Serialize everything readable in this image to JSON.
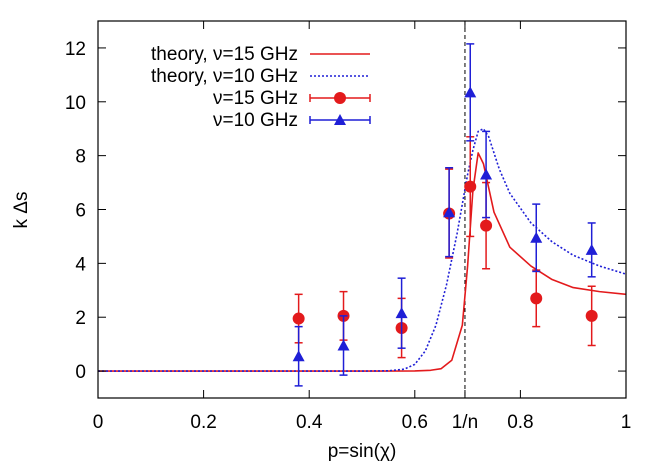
{
  "chart_data": {
    "type": "scatter",
    "xlabel": "p=sin(χ)",
    "ylabel": "k Δs",
    "xlim": [
      0,
      1
    ],
    "ylim": [
      -1,
      13
    ],
    "x_ticks": [
      {
        "value": 0,
        "label": "0"
      },
      {
        "value": 0.2,
        "label": "0.2"
      },
      {
        "value": 0.4,
        "label": "0.4"
      },
      {
        "value": 0.6,
        "label": "0.6"
      },
      {
        "value": 0.695,
        "label": "1/n"
      },
      {
        "value": 0.8,
        "label": "0.8"
      },
      {
        "value": 1,
        "label": "1"
      }
    ],
    "y_ticks": [
      0,
      2,
      4,
      6,
      8,
      10,
      12
    ],
    "vertical_line": {
      "x": 0.695,
      "style": "dashed"
    },
    "grid": false,
    "legend_position": "top-left",
    "series": [
      {
        "name": "theory, ν=15 GHz",
        "kind": "line",
        "style": "solid",
        "color": "#e31a1c",
        "x": [
          0,
          0.5,
          0.6,
          0.63,
          0.65,
          0.67,
          0.69,
          0.7,
          0.71,
          0.72,
          0.73,
          0.75,
          0.78,
          0.82,
          0.86,
          0.9,
          0.95,
          1.0
        ],
        "y": [
          0,
          0,
          0.005,
          0.03,
          0.09,
          0.4,
          1.7,
          3.9,
          6.7,
          8.1,
          7.7,
          5.9,
          4.6,
          3.9,
          3.4,
          3.1,
          2.95,
          2.85
        ]
      },
      {
        "name": "theory, ν=10 GHz",
        "kind": "line",
        "style": "dotted",
        "color": "#1f1fd6",
        "x": [
          0,
          0.5,
          0.55,
          0.58,
          0.6,
          0.62,
          0.64,
          0.66,
          0.68,
          0.69,
          0.7,
          0.71,
          0.72,
          0.73,
          0.74,
          0.76,
          0.78,
          0.82,
          0.86,
          0.9,
          0.95,
          1.0
        ],
        "y": [
          0,
          0,
          0.01,
          0.07,
          0.25,
          0.75,
          1.7,
          3.2,
          5.1,
          6.2,
          7.3,
          8.2,
          8.9,
          9.0,
          8.7,
          7.5,
          6.6,
          5.5,
          4.8,
          4.3,
          3.9,
          3.6
        ]
      },
      {
        "name": "ν=15 GHz",
        "kind": "points",
        "marker": "circle",
        "color": "#e31a1c",
        "points": [
          {
            "x": 0.38,
            "y": 1.95,
            "err": 0.9
          },
          {
            "x": 0.465,
            "y": 2.05,
            "err": 0.9
          },
          {
            "x": 0.575,
            "y": 1.6,
            "err": 1.1
          },
          {
            "x": 0.665,
            "y": 5.85,
            "err": 1.65
          },
          {
            "x": 0.705,
            "y": 6.85,
            "err": 1.85
          },
          {
            "x": 0.735,
            "y": 5.4,
            "err": 1.6
          },
          {
            "x": 0.83,
            "y": 2.7,
            "err": 1.05
          },
          {
            "x": 0.935,
            "y": 2.05,
            "err": 1.1
          }
        ]
      },
      {
        "name": "ν=10 GHz",
        "kind": "points",
        "marker": "triangle",
        "color": "#1f1fd6",
        "points": [
          {
            "x": 0.38,
            "y": 0.55,
            "err": 1.1
          },
          {
            "x": 0.465,
            "y": 0.95,
            "err": 1.1
          },
          {
            "x": 0.575,
            "y": 2.15,
            "err": 1.3
          },
          {
            "x": 0.665,
            "y": 5.9,
            "err": 1.65
          },
          {
            "x": 0.705,
            "y": 10.35,
            "err": 1.8
          },
          {
            "x": 0.735,
            "y": 7.3,
            "err": 1.6
          },
          {
            "x": 0.83,
            "y": 4.95,
            "err": 1.25
          },
          {
            "x": 0.935,
            "y": 4.5,
            "err": 1.0
          }
        ]
      }
    ]
  }
}
